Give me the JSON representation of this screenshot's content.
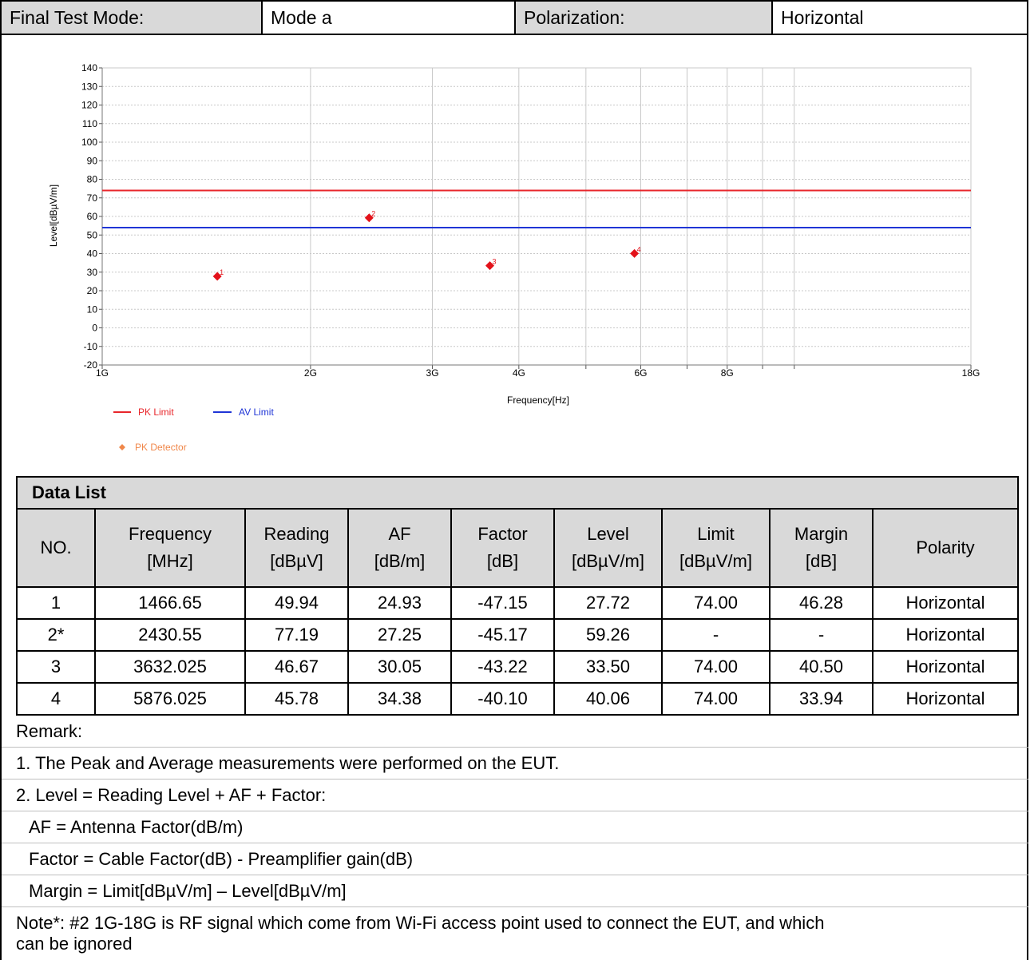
{
  "header": {
    "test_mode_label": "Final Test Mode:",
    "test_mode_value": "Mode a",
    "polarization_label": "Polarization:",
    "polarization_value": "Horizontal"
  },
  "chart_data": {
    "type": "scatter",
    "xlabel": "Frequency[Hz]",
    "ylabel": "Level[dBµV/m]",
    "x_scale": "log",
    "xlim": [
      1000,
      18000
    ],
    "ylim": [
      -20,
      140
    ],
    "y_ticks": [
      140,
      130,
      120,
      110,
      100,
      90,
      80,
      70,
      60,
      50,
      40,
      30,
      20,
      10,
      0,
      -10,
      -20
    ],
    "x_ticks": [
      {
        "value": 1000,
        "label": "1G"
      },
      {
        "value": 2000,
        "label": "2G"
      },
      {
        "value": 3000,
        "label": "3G"
      },
      {
        "value": 4000,
        "label": "4G"
      },
      {
        "value": 6000,
        "label": "6G"
      },
      {
        "value": 8000,
        "label": "8G"
      },
      {
        "value": 18000,
        "label": "18G"
      }
    ],
    "minor_x_ticks": [
      5000,
      7000,
      9000,
      10000
    ],
    "grid": true,
    "limits": [
      {
        "name": "PK Limit",
        "value": 74,
        "color": "#e8262b"
      },
      {
        "name": "AV Limit",
        "value": 54,
        "color": "#1f35d6"
      }
    ],
    "series": [
      {
        "name": "PK Detector",
        "color": "#f0874a",
        "marker_color": "#e3121a",
        "points": [
          {
            "label": "1",
            "x": 1466.65,
            "y": 27.72
          },
          {
            "label": "2",
            "x": 2430.55,
            "y": 59.26
          },
          {
            "label": "3",
            "x": 3632.025,
            "y": 33.5
          },
          {
            "label": "4",
            "x": 5876.025,
            "y": 40.06
          }
        ]
      }
    ],
    "legend": "bottom-left"
  },
  "data_list": {
    "title": "Data List",
    "columns": [
      {
        "line1": "NO.",
        "line2": ""
      },
      {
        "line1": "Frequency",
        "line2": "[MHz]"
      },
      {
        "line1": "Reading",
        "line2": "[dBµV]"
      },
      {
        "line1": "AF",
        "line2": "[dB/m]"
      },
      {
        "line1": "Factor",
        "line2": "[dB]"
      },
      {
        "line1": "Level",
        "line2": "[dBµV/m]"
      },
      {
        "line1": "Limit",
        "line2": "[dBµV/m]"
      },
      {
        "line1": "Margin",
        "line2": "[dB]"
      },
      {
        "line1": "Polarity",
        "line2": ""
      }
    ],
    "rows": [
      [
        "1",
        "1466.65",
        "49.94",
        "24.93",
        "-47.15",
        "27.72",
        "74.00",
        "46.28",
        "Horizontal"
      ],
      [
        "2*",
        "2430.55",
        "77.19",
        "27.25",
        "-45.17",
        "59.26",
        "-",
        "-",
        "Horizontal"
      ],
      [
        "3",
        "3632.025",
        "46.67",
        "30.05",
        "-43.22",
        "33.50",
        "74.00",
        "40.50",
        "Horizontal"
      ],
      [
        "4",
        "5876.025",
        "45.78",
        "34.38",
        "-40.10",
        "40.06",
        "74.00",
        "33.94",
        "Horizontal"
      ]
    ]
  },
  "remarks": {
    "heading": "Remark:",
    "line1": "1. The Peak and Average measurements were performed on the EUT.",
    "line2": "2. Level = Reading Level + AF + Factor:",
    "line3": "AF = Antenna Factor(dB/m)",
    "line4": "Factor = Cable Factor(dB) - Preamplifier gain(dB)",
    "line5": "Margin = Limit[dBµV/m] – Level[dBµV/m]",
    "note_line1": "Note*: #2 1G-18G is RF signal which come from Wi-Fi access point used to connect the EUT, and which",
    "note_line2": "can be ignored"
  }
}
